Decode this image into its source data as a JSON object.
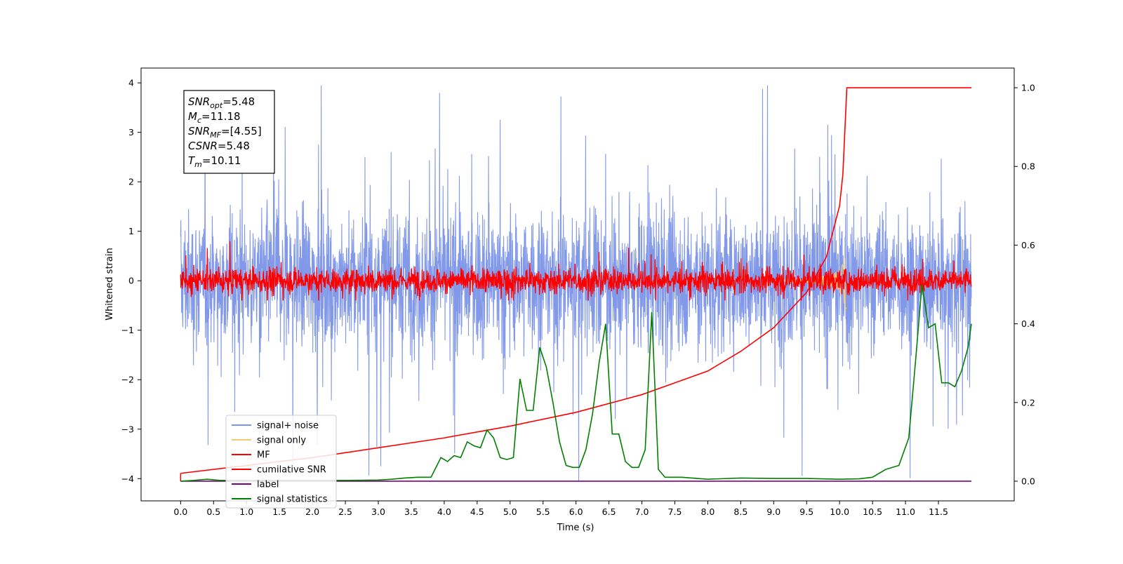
{
  "chart_data": {
    "type": "line",
    "xlabel": "Time (s)",
    "ylabel": "Whitened strain",
    "xlim": [
      -0.6,
      12.65
    ],
    "ylim": [
      -4.45,
      4.3
    ],
    "y2lim": [
      -0.05,
      1.05
    ],
    "x_ticks": [
      "0.0",
      "0.5",
      "1.0",
      "1.5",
      "2.0",
      "2.5",
      "3.0",
      "3.5",
      "4.0",
      "4.5",
      "5.0",
      "5.5",
      "6.0",
      "6.5",
      "7.0",
      "7.5",
      "8.0",
      "8.5",
      "9.0",
      "9.5",
      "10.0",
      "10.5",
      "11.0",
      "11.5"
    ],
    "y_ticks": [
      "4",
      "3",
      "2",
      "1",
      "0",
      "−1",
      "−2",
      "−3",
      "−4"
    ],
    "y2_ticks": [
      "1.0",
      "0.8",
      "0.6",
      "0.4",
      "0.2",
      "0.0"
    ],
    "grid": false,
    "legend_position": "lower-left",
    "annotation": {
      "lines": [
        {
          "base": "SNR",
          "sub": "opt",
          "value": "=5.48"
        },
        {
          "base": "M",
          "sub": "c",
          "value": "=11.18"
        },
        {
          "base": "SNR",
          "sub": "MF",
          "value": "=[4.55]"
        },
        {
          "base": "CSNR",
          "sub": "",
          "value": "=5.48"
        },
        {
          "base": "T",
          "sub": "m",
          "value": "=10.11"
        }
      ]
    },
    "series": [
      {
        "name": "signal+ noise",
        "color": "#7b93e8",
        "axis": "left",
        "x_range": [
          0.0,
          12.0
        ],
        "amplitude_range": [
          -4.05,
          3.95
        ],
        "style": "noise-band"
      },
      {
        "name": "signal only",
        "color": "#f5c97a",
        "axis": "left",
        "style": "chirp",
        "peak_time": 10.11,
        "peak_amplitude": 0.75
      },
      {
        "name": "MF",
        "color": "#ff0000",
        "axis": "left",
        "x_range": [
          0.0,
          12.0
        ],
        "amplitude_range": [
          -0.4,
          0.8
        ],
        "style": "noise-band"
      },
      {
        "name": "cumilative SNR",
        "color": "#ff0000",
        "axis": "right",
        "x": [
          0.0,
          1.0,
          2.0,
          3.0,
          4.0,
          5.0,
          6.0,
          7.0,
          7.5,
          8.0,
          8.5,
          9.0,
          9.5,
          9.8,
          10.0,
          10.05,
          10.11,
          12.0
        ],
        "y": [
          0.02,
          0.04,
          0.06,
          0.085,
          0.11,
          0.14,
          0.175,
          0.22,
          0.25,
          0.28,
          0.33,
          0.39,
          0.48,
          0.57,
          0.7,
          0.78,
          1.0,
          1.0
        ]
      },
      {
        "name": "label",
        "color": "#800080",
        "axis": "right",
        "x": [
          0.0,
          12.0
        ],
        "y": [
          0.0,
          0.0
        ]
      },
      {
        "name": "signal statistics",
        "color": "#008000",
        "axis": "right",
        "x": [
          0.0,
          0.2,
          0.4,
          0.6,
          0.8,
          1.0,
          1.5,
          2.0,
          2.5,
          3.0,
          3.2,
          3.4,
          3.6,
          3.8,
          3.95,
          4.05,
          4.15,
          4.25,
          4.35,
          4.45,
          4.55,
          4.65,
          4.75,
          4.85,
          4.95,
          5.05,
          5.15,
          5.25,
          5.35,
          5.45,
          5.55,
          5.65,
          5.75,
          5.85,
          5.95,
          6.05,
          6.15,
          6.25,
          6.35,
          6.45,
          6.55,
          6.65,
          6.75,
          6.85,
          6.95,
          7.05,
          7.15,
          7.25,
          7.35,
          7.6,
          8.0,
          8.5,
          9.0,
          9.5,
          10.0,
          10.3,
          10.5,
          10.7,
          10.9,
          11.05,
          11.15,
          11.25,
          11.35,
          11.45,
          11.55,
          11.65,
          11.75,
          11.85,
          11.95,
          12.0
        ],
        "y": [
          0.0,
          0.002,
          0.005,
          0.002,
          0.002,
          0.002,
          0.002,
          0.002,
          0.002,
          0.003,
          0.005,
          0.008,
          0.01,
          0.01,
          0.06,
          0.05,
          0.065,
          0.06,
          0.1,
          0.09,
          0.085,
          0.13,
          0.11,
          0.06,
          0.055,
          0.06,
          0.26,
          0.18,
          0.18,
          0.34,
          0.29,
          0.2,
          0.1,
          0.04,
          0.035,
          0.035,
          0.08,
          0.17,
          0.3,
          0.4,
          0.12,
          0.12,
          0.05,
          0.035,
          0.035,
          0.08,
          0.43,
          0.03,
          0.01,
          0.01,
          0.005,
          0.008,
          0.007,
          0.007,
          0.005,
          0.006,
          0.01,
          0.03,
          0.04,
          0.11,
          0.3,
          0.5,
          0.39,
          0.4,
          0.25,
          0.25,
          0.24,
          0.28,
          0.34,
          0.4
        ]
      }
    ]
  }
}
